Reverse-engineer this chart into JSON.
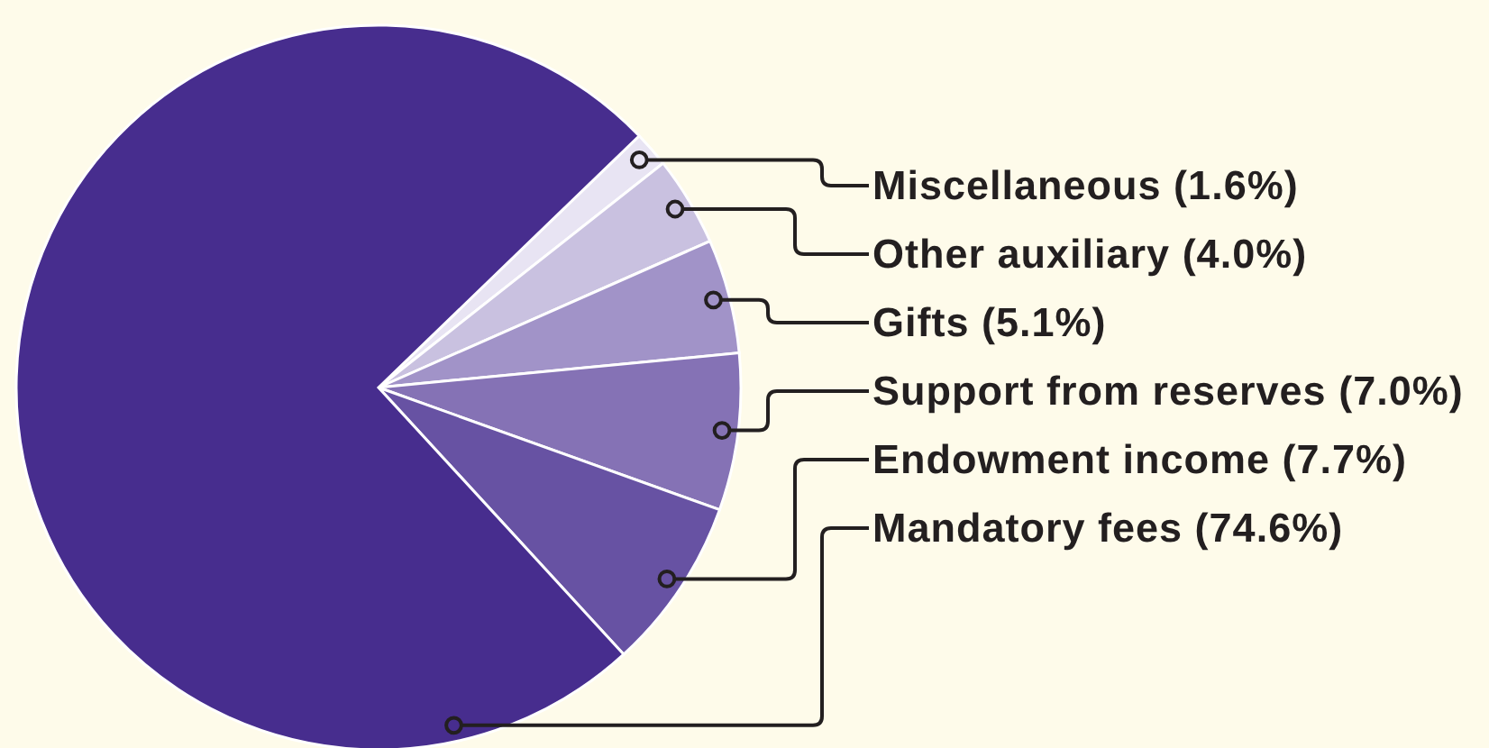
{
  "chart_data": {
    "type": "pie",
    "categories": [
      "Miscellaneous",
      "Other auxiliary",
      "Gifts",
      "Support from reserves",
      "Endowment income",
      "Mandatory fees"
    ],
    "values": [
      1.6,
      4.0,
      5.1,
      7.0,
      7.7,
      74.6
    ],
    "colors": [
      "#e8e4f3",
      "#c9c1e0",
      "#a193c8",
      "#8572b5",
      "#6752a3",
      "#472d8e"
    ],
    "value_labels": [
      "(1.6%)",
      "(4.0%)",
      "(5.1%)",
      "(7.0%)",
      "(7.7%)",
      "(74.6%)"
    ]
  }
}
